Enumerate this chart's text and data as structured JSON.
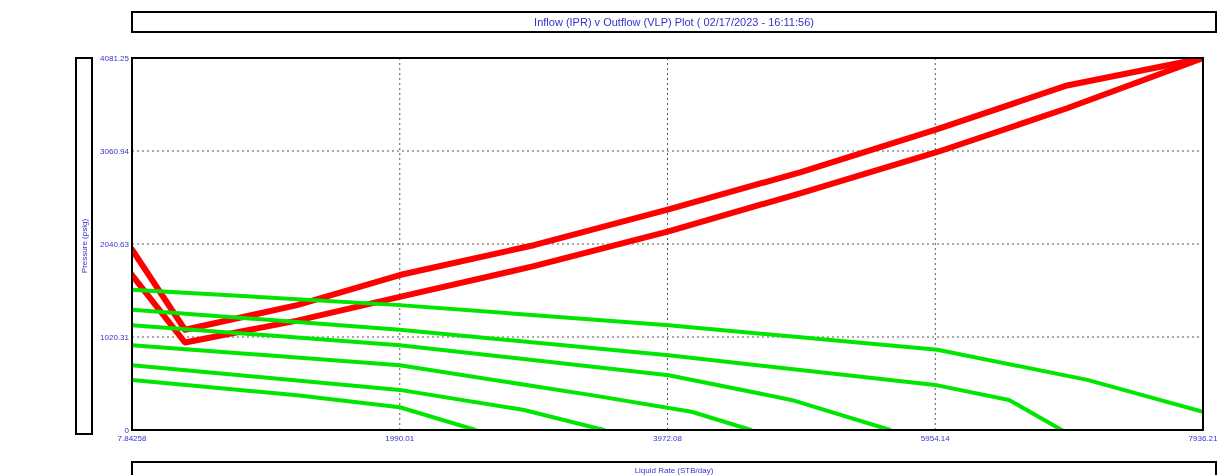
{
  "chart_data": {
    "type": "line",
    "title": "Inflow (IPR) v Outflow (VLP) Plot ( 02/17/2023 - 16:11:56)",
    "xlabel": "Liquid Rate (STB/day)",
    "ylabel": "Pressure (psig)",
    "xlim": [
      7.84258,
      7936.21
    ],
    "ylim": [
      0,
      4081.25
    ],
    "xticks": [
      7.84258,
      1990.01,
      3972.08,
      5954.14,
      7936.21
    ],
    "yticks": [
      0,
      1020.31,
      2040.63,
      3060.94,
      4081.25
    ],
    "grid": true,
    "marker": "none",
    "line_style": "solid",
    "series": [
      {
        "color": "#ff0000",
        "x": [
          7.84258,
          400,
          1230,
          1990,
          2990,
          3980,
          4960,
          5970,
          6930,
          7936.21
        ],
        "values": [
          1980,
          1100,
          1370,
          1700,
          2030,
          2420,
          2830,
          3300,
          3780,
          4080
        ]
      },
      {
        "color": "#ff0000",
        "x": [
          7.84258,
          400,
          1230,
          1990,
          2990,
          3980,
          4960,
          5970,
          6930,
          7936.21
        ],
        "values": [
          1700,
          960,
          1200,
          1460,
          1800,
          2180,
          2600,
          3050,
          3530,
          4080
        ]
      },
      {
        "color": "#00e600",
        "x": [
          7.84258,
          1990,
          3980,
          5970,
          7080,
          7936.21
        ],
        "values": [
          1540,
          1370,
          1150,
          880,
          550,
          200
        ]
      },
      {
        "color": "#00e600",
        "x": [
          7.84258,
          1990,
          3980,
          5970,
          6500,
          6890
        ],
        "values": [
          1320,
          1100,
          820,
          490,
          330,
          0
        ]
      },
      {
        "color": "#00e600",
        "x": [
          7.84258,
          1990,
          3980,
          4890,
          5620
        ],
        "values": [
          1150,
          930,
          600,
          330,
          0
        ]
      },
      {
        "color": "#00e600",
        "x": [
          7.84258,
          1990,
          3420,
          4150,
          4590
        ],
        "values": [
          930,
          710,
          380,
          200,
          0
        ]
      },
      {
        "color": "#00e600",
        "x": [
          7.84258,
          1990,
          2910,
          3500
        ],
        "values": [
          710,
          440,
          220,
          0
        ]
      },
      {
        "color": "#00e600",
        "x": [
          7.84258,
          1230,
          1990,
          2550
        ],
        "values": [
          550,
          380,
          250,
          0
        ]
      }
    ]
  }
}
